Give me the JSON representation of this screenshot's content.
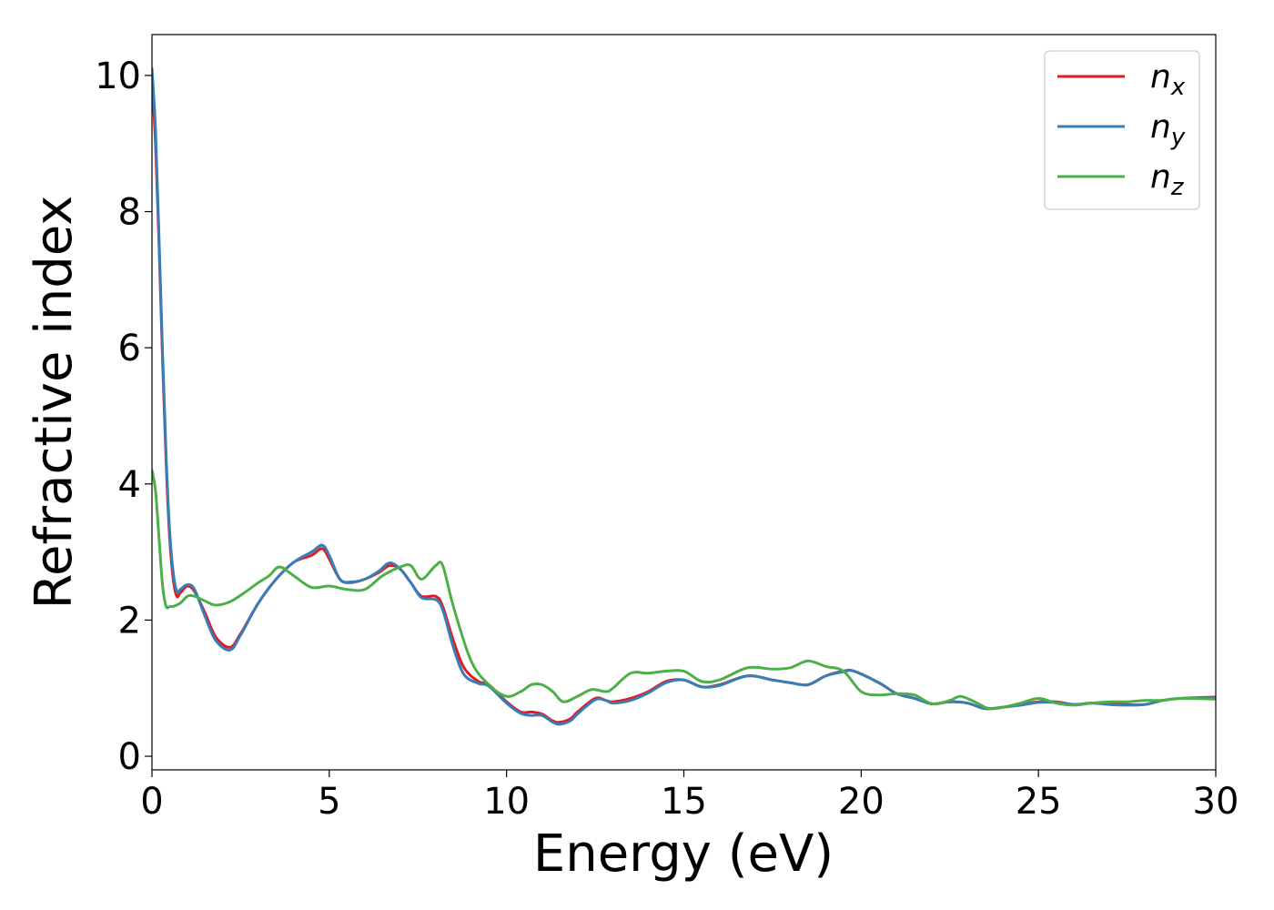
{
  "chart_data": {
    "type": "line",
    "title": "",
    "xlabel": "Energy (eV)",
    "ylabel": "Refractive index",
    "xlim": [
      0,
      30
    ],
    "ylim": [
      -0.2,
      10.6
    ],
    "xticks": [
      0,
      5,
      10,
      15,
      20,
      25,
      30
    ],
    "yticks": [
      0,
      2,
      4,
      6,
      8,
      10
    ],
    "xtick_labels": [
      "0",
      "5",
      "10",
      "15",
      "20",
      "25",
      "30"
    ],
    "ytick_labels": [
      "0",
      "2",
      "4",
      "6",
      "8",
      "10"
    ],
    "grid": false,
    "legend_position": "top-right",
    "series": [
      {
        "name": "n_x",
        "label_base": "n",
        "label_sub": "x",
        "color": "#e41a1c",
        "x": [
          0,
          0.1,
          0.2,
          0.3,
          0.4,
          0.5,
          0.6,
          0.7,
          0.8,
          1.0,
          1.2,
          1.5,
          1.8,
          2.2,
          2.5,
          3.0,
          3.5,
          4.0,
          4.5,
          4.8,
          5.0,
          5.3,
          5.6,
          6.0,
          6.4,
          6.7,
          7.0,
          7.3,
          7.6,
          8.0,
          8.2,
          8.5,
          8.8,
          9.2,
          9.5,
          10.0,
          10.4,
          10.7,
          11.0,
          11.3,
          11.5,
          11.8,
          12.0,
          12.5,
          12.8,
          13.0,
          13.5,
          14.0,
          14.5,
          15.0,
          15.5,
          16.0,
          16.8,
          17.5,
          18.0,
          18.5,
          19.0,
          19.5,
          19.8,
          20.5,
          21.0,
          21.5,
          22.0,
          22.5,
          23.0,
          23.5,
          24.0,
          24.5,
          25.0,
          25.5,
          26.0,
          26.5,
          27.0,
          27.5,
          28.0,
          28.5,
          29.0,
          30.0
        ],
        "y": [
          9.9,
          9.0,
          7.5,
          5.8,
          4.3,
          3.2,
          2.6,
          2.35,
          2.4,
          2.5,
          2.42,
          2.1,
          1.75,
          1.6,
          1.8,
          2.25,
          2.6,
          2.85,
          2.95,
          3.05,
          2.9,
          2.6,
          2.55,
          2.6,
          2.7,
          2.8,
          2.75,
          2.55,
          2.35,
          2.35,
          2.2,
          1.7,
          1.3,
          1.1,
          1.05,
          0.8,
          0.65,
          0.65,
          0.62,
          0.52,
          0.5,
          0.55,
          0.65,
          0.85,
          0.82,
          0.8,
          0.85,
          0.95,
          1.1,
          1.12,
          1.02,
          1.05,
          1.18,
          1.12,
          1.08,
          1.05,
          1.18,
          1.25,
          1.25,
          1.08,
          0.92,
          0.85,
          0.77,
          0.8,
          0.78,
          0.7,
          0.72,
          0.76,
          0.8,
          0.8,
          0.76,
          0.78,
          0.77,
          0.76,
          0.76,
          0.82,
          0.85,
          0.87
        ]
      },
      {
        "name": "n_y",
        "label_base": "n",
        "label_sub": "y",
        "color": "#377eb8",
        "x": [
          0,
          0.1,
          0.2,
          0.3,
          0.4,
          0.5,
          0.6,
          0.7,
          0.8,
          1.0,
          1.2,
          1.5,
          1.8,
          2.2,
          2.5,
          3.0,
          3.5,
          4.0,
          4.5,
          4.8,
          5.0,
          5.3,
          5.6,
          6.0,
          6.4,
          6.7,
          7.0,
          7.3,
          7.6,
          8.0,
          8.2,
          8.5,
          8.8,
          9.2,
          9.5,
          10.0,
          10.4,
          10.7,
          11.0,
          11.3,
          11.5,
          11.8,
          12.0,
          12.5,
          12.8,
          13.0,
          13.5,
          14.0,
          14.5,
          15.0,
          15.5,
          16.0,
          16.8,
          17.5,
          18.0,
          18.5,
          19.0,
          19.5,
          19.8,
          20.5,
          21.0,
          21.5,
          22.0,
          22.5,
          23.0,
          23.5,
          24.0,
          24.5,
          25.0,
          25.5,
          26.0,
          26.5,
          27.0,
          27.5,
          28.0,
          28.5,
          29.0,
          30.0
        ],
        "y": [
          10.1,
          9.2,
          7.6,
          5.9,
          4.4,
          3.3,
          2.7,
          2.42,
          2.45,
          2.52,
          2.45,
          2.05,
          1.7,
          1.56,
          1.78,
          2.25,
          2.6,
          2.85,
          3.0,
          3.1,
          2.95,
          2.6,
          2.56,
          2.6,
          2.72,
          2.84,
          2.75,
          2.55,
          2.33,
          2.3,
          2.15,
          1.6,
          1.2,
          1.07,
          1.03,
          0.78,
          0.63,
          0.6,
          0.6,
          0.5,
          0.47,
          0.52,
          0.62,
          0.83,
          0.82,
          0.78,
          0.82,
          0.93,
          1.08,
          1.12,
          1.02,
          1.04,
          1.18,
          1.12,
          1.08,
          1.05,
          1.18,
          1.24,
          1.25,
          1.08,
          0.92,
          0.85,
          0.77,
          0.8,
          0.78,
          0.7,
          0.72,
          0.75,
          0.79,
          0.79,
          0.76,
          0.78,
          0.76,
          0.75,
          0.76,
          0.82,
          0.85,
          0.86
        ]
      },
      {
        "name": "n_z",
        "label_base": "n",
        "label_sub": "z",
        "color": "#4daf4a",
        "x": [
          0,
          0.1,
          0.2,
          0.3,
          0.4,
          0.5,
          0.6,
          0.8,
          1.0,
          1.2,
          1.5,
          1.8,
          2.2,
          2.6,
          3.0,
          3.3,
          3.6,
          4.0,
          4.5,
          5.0,
          5.5,
          6.0,
          6.5,
          7.0,
          7.3,
          7.6,
          8.0,
          8.2,
          8.5,
          9.0,
          9.5,
          10.0,
          10.4,
          10.7,
          11.0,
          11.3,
          11.6,
          12.0,
          12.4,
          12.8,
          13.0,
          13.5,
          14.0,
          14.5,
          15.0,
          15.5,
          16.0,
          16.8,
          17.5,
          18.0,
          18.5,
          19.0,
          19.5,
          20.0,
          20.5,
          21.0,
          21.5,
          22.0,
          22.5,
          22.8,
          23.2,
          23.6,
          24.0,
          24.5,
          25.0,
          25.5,
          26.0,
          26.5,
          27.0,
          27.5,
          28.0,
          28.5,
          29.0,
          30.0
        ],
        "y": [
          4.2,
          3.9,
          3.2,
          2.5,
          2.2,
          2.2,
          2.2,
          2.25,
          2.35,
          2.35,
          2.28,
          2.22,
          2.27,
          2.4,
          2.55,
          2.65,
          2.78,
          2.65,
          2.48,
          2.5,
          2.45,
          2.45,
          2.65,
          2.78,
          2.8,
          2.6,
          2.8,
          2.8,
          2.2,
          1.4,
          1.05,
          0.88,
          0.95,
          1.05,
          1.05,
          0.95,
          0.8,
          0.88,
          0.98,
          0.95,
          1.0,
          1.22,
          1.22,
          1.25,
          1.25,
          1.1,
          1.12,
          1.3,
          1.28,
          1.3,
          1.4,
          1.32,
          1.25,
          0.95,
          0.9,
          0.92,
          0.9,
          0.77,
          0.82,
          0.88,
          0.8,
          0.7,
          0.72,
          0.78,
          0.85,
          0.78,
          0.75,
          0.78,
          0.8,
          0.8,
          0.82,
          0.82,
          0.85,
          0.84
        ]
      }
    ]
  }
}
